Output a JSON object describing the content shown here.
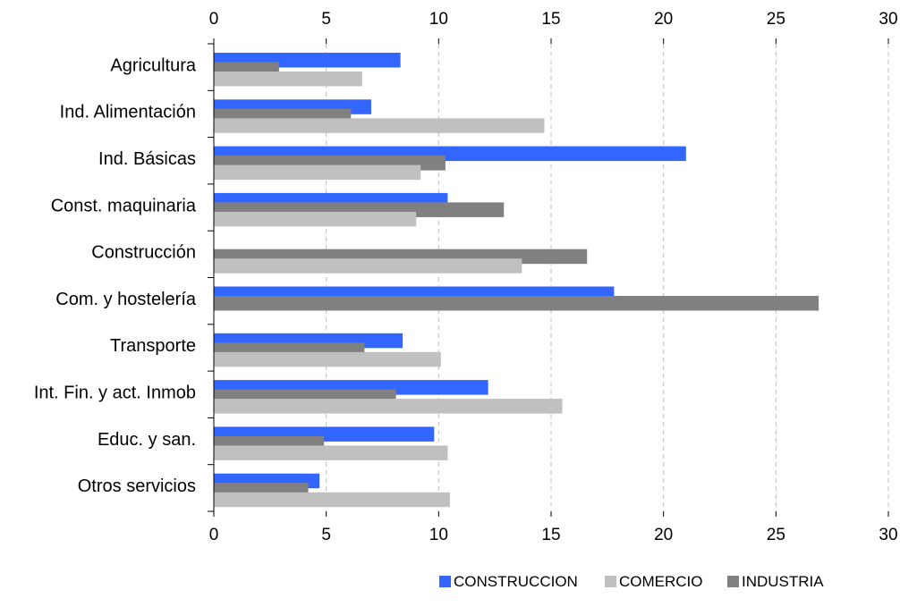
{
  "chart_data": {
    "type": "bar",
    "orientation": "horizontal",
    "categories": [
      "Agricultura",
      "Ind. Alimentación",
      "Ind. Básicas",
      "Const. maquinaria",
      "Construcción",
      "Com. y hostelería",
      "Transporte",
      "Int. Fin. y act. Inmob",
      "Educ. y san.",
      "Otros servicios"
    ],
    "series": [
      {
        "name": "CONSTRUCCION",
        "color": "#3366ff",
        "values": [
          8.3,
          7.0,
          21.0,
          10.4,
          0,
          17.8,
          8.4,
          12.2,
          9.8,
          4.7
        ]
      },
      {
        "name": "INDUSTRIA",
        "color": "#808080",
        "values": [
          2.9,
          6.1,
          10.3,
          12.9,
          16.6,
          26.9,
          6.7,
          8.1,
          4.9,
          4.2
        ]
      },
      {
        "name": "COMERCIO",
        "color": "#c0c0c0",
        "values": [
          6.6,
          14.7,
          9.2,
          9.0,
          13.7,
          0,
          10.1,
          15.5,
          10.4,
          10.5
        ]
      }
    ],
    "xlim": [
      0,
      30
    ],
    "xticks": [
      "0",
      "5",
      "10",
      "15",
      "20",
      "25",
      "30"
    ],
    "grid": true,
    "legend": {
      "position": "bottom-right",
      "order": [
        "CONSTRUCCION",
        "COMERCIO",
        "INDUSTRIA"
      ]
    }
  }
}
